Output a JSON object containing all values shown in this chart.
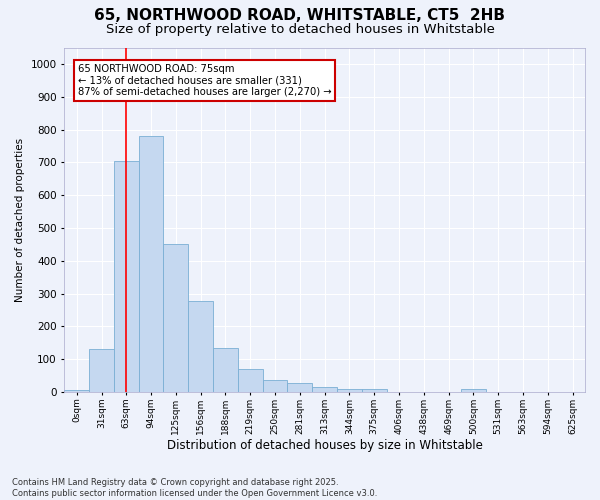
{
  "title": "65, NORTHWOOD ROAD, WHITSTABLE, CT5  2HB",
  "subtitle": "Size of property relative to detached houses in Whitstable",
  "xlabel": "Distribution of detached houses by size in Whitstable",
  "ylabel": "Number of detached properties",
  "footer_line1": "Contains HM Land Registry data © Crown copyright and database right 2025.",
  "footer_line2": "Contains public sector information licensed under the Open Government Licence v3.0.",
  "bin_labels": [
    "0sqm",
    "31sqm",
    "63sqm",
    "94sqm",
    "125sqm",
    "156sqm",
    "188sqm",
    "219sqm",
    "250sqm",
    "281sqm",
    "313sqm",
    "344sqm",
    "375sqm",
    "406sqm",
    "438sqm",
    "469sqm",
    "500sqm",
    "531sqm",
    "563sqm",
    "594sqm",
    "625sqm"
  ],
  "bar_values": [
    5,
    130,
    705,
    780,
    450,
    278,
    133,
    70,
    38,
    26,
    15,
    10,
    8,
    0,
    0,
    0,
    8,
    0,
    0,
    0,
    0
  ],
  "bar_color": "#c5d8f0",
  "bar_edge_color": "#7aafd4",
  "red_line_x": 2,
  "annotation_line1": "65 NORTHWOOD ROAD: 75sqm",
  "annotation_line2": "← 13% of detached houses are smaller (331)",
  "annotation_line3": "87% of semi-detached houses are larger (2,270) →",
  "annotation_box_color": "#ffffff",
  "annotation_box_edge_color": "#cc0000",
  "ylim": [
    0,
    1050
  ],
  "yticks": [
    0,
    100,
    200,
    300,
    400,
    500,
    600,
    700,
    800,
    900,
    1000
  ],
  "bg_color": "#eef2fb",
  "grid_color": "#ffffff",
  "title_fontsize": 11,
  "subtitle_fontsize": 9.5
}
